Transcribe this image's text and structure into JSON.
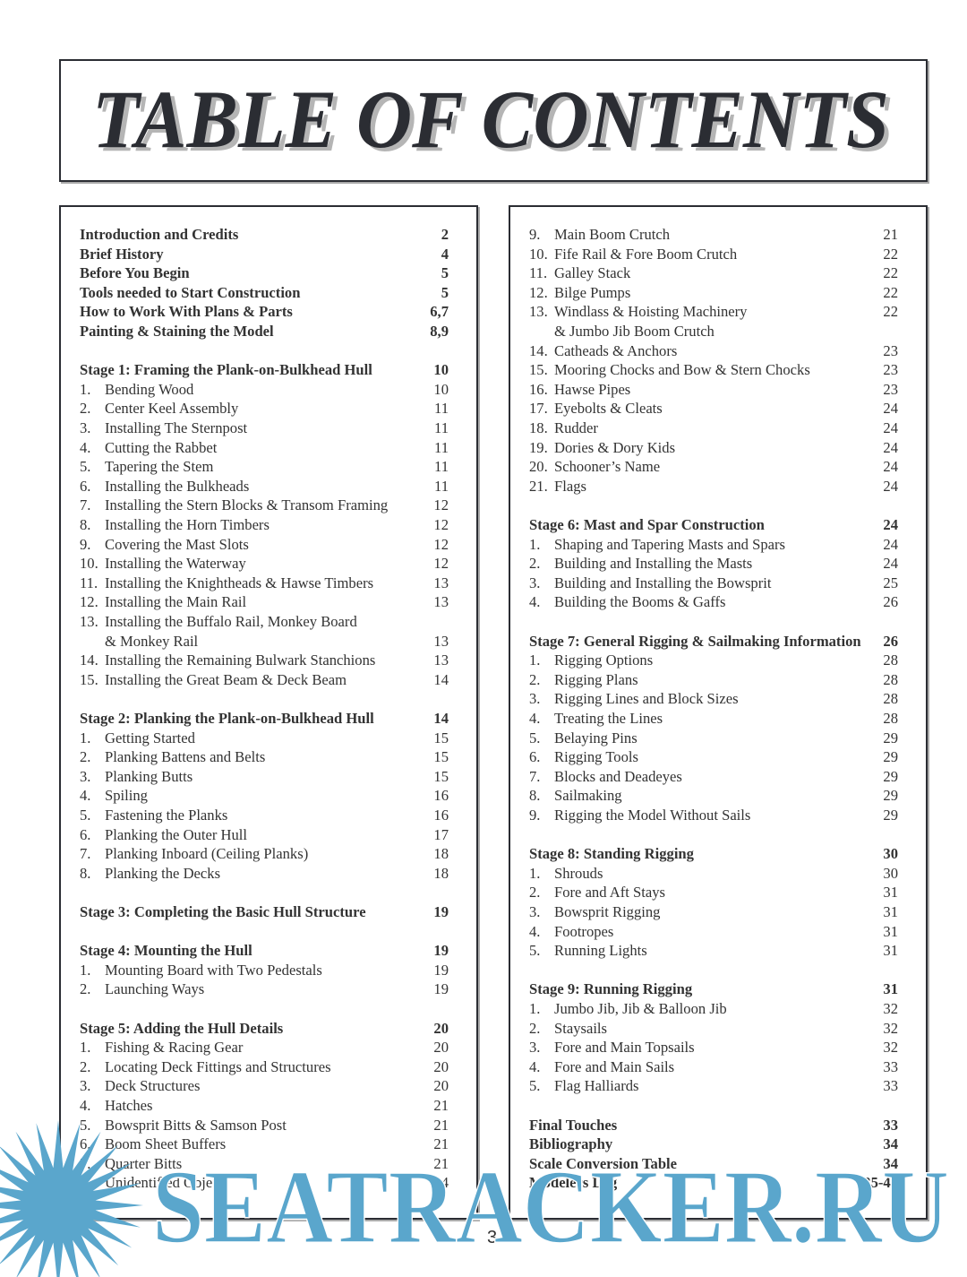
{
  "title": "TABLE OF CONTENTS",
  "page_number": "3",
  "watermark": {
    "text": "SEATRACKER.RU",
    "color": "#5aa6cc"
  },
  "left_column": [
    {
      "type": "h",
      "text": "Introduction and Credits",
      "page": "2"
    },
    {
      "type": "h",
      "text": "Brief History",
      "page": "4"
    },
    {
      "type": "h",
      "text": "Before You Begin",
      "page": "5"
    },
    {
      "type": "h",
      "text": "Tools needed  to Start Construction",
      "page": "5"
    },
    {
      "type": "h",
      "text": "How to Work With Plans & Parts",
      "page": "6,7"
    },
    {
      "type": "h",
      "text": "Painting & Staining the Model",
      "page": "8,9"
    },
    {
      "type": "blank"
    },
    {
      "type": "h",
      "text": "Stage 1: Framing the Plank-on-Bulkhead Hull",
      "page": "10"
    },
    {
      "type": "i",
      "num": "1.",
      "text": "Bending Wood",
      "page": "10"
    },
    {
      "type": "i",
      "num": "2.",
      "text": "Center Keel Assembly",
      "page": "11"
    },
    {
      "type": "i",
      "num": "3.",
      "text": "Installing The Sternpost",
      "page": "11"
    },
    {
      "type": "i",
      "num": "4.",
      "text": "Cutting the Rabbet",
      "page": "11"
    },
    {
      "type": "i",
      "num": "5.",
      "text": "Tapering the Stem",
      "page": "11"
    },
    {
      "type": "i",
      "num": "6.",
      "text": "Installing the Bulkheads",
      "page": "11"
    },
    {
      "type": "i",
      "num": "7.",
      "text": "Installing the Stern Blocks & Transom Framing",
      "page": "12"
    },
    {
      "type": "i",
      "num": "8.",
      "text": "Installing the Horn Timbers",
      "page": "12"
    },
    {
      "type": "i",
      "num": "9.",
      "text": "Covering the Mast Slots",
      "page": "12"
    },
    {
      "type": "i",
      "num": "10.",
      "text": "Installing the Waterway",
      "page": "12"
    },
    {
      "type": "i",
      "num": "11.",
      "text": "Installing the Knightheads & Hawse Timbers",
      "page": "13"
    },
    {
      "type": "i",
      "num": "12.",
      "text": "Installing the Main Rail",
      "page": "13"
    },
    {
      "type": "i",
      "num": "13.",
      "text": "Installing the Buffalo Rail, Monkey Board",
      "page": ""
    },
    {
      "type": "i",
      "num": "",
      "text": "& Monkey Rail",
      "page": "13"
    },
    {
      "type": "i",
      "num": "14.",
      "text": "Installing the Remaining Bulwark Stanchions",
      "page": "13"
    },
    {
      "type": "i",
      "num": "15.",
      "text": "Installing the Great Beam & Deck Beam",
      "page": "14"
    },
    {
      "type": "blank"
    },
    {
      "type": "h",
      "text": "Stage 2: Planking the Plank-on-Bulkhead Hull",
      "page": "14"
    },
    {
      "type": "i",
      "num": "1.",
      "text": "Getting Started",
      "page": "15"
    },
    {
      "type": "i",
      "num": "2.",
      "text": "Planking Battens and Belts",
      "page": "15"
    },
    {
      "type": "i",
      "num": "3.",
      "text": "Planking Butts",
      "page": "15"
    },
    {
      "type": "i",
      "num": "4.",
      "text": "Spiling",
      "page": "16"
    },
    {
      "type": "i",
      "num": "5.",
      "text": "Fastening the Planks",
      "page": "16"
    },
    {
      "type": "i",
      "num": "6.",
      "text": "Planking the Outer Hull",
      "page": "17"
    },
    {
      "type": "i",
      "num": "7.",
      "text": "Planking Inboard (Ceiling Planks)",
      "page": "18"
    },
    {
      "type": "i",
      "num": "8.",
      "text": "Planking the Decks",
      "page": "18"
    },
    {
      "type": "blank"
    },
    {
      "type": "h",
      "text": "Stage 3: Completing the Basic Hull Structure",
      "page": "19"
    },
    {
      "type": "blank"
    },
    {
      "type": "h",
      "text": "Stage 4: Mounting the Hull",
      "page": "19"
    },
    {
      "type": "i",
      "num": "1.",
      "text": "Mounting Board with Two Pedestals",
      "page": "19"
    },
    {
      "type": "i",
      "num": "2.",
      "text": "Launching Ways",
      "page": "19"
    },
    {
      "type": "blank"
    },
    {
      "type": "h",
      "text": "Stage 5: Adding the Hull Details",
      "page": "20"
    },
    {
      "type": "i",
      "num": "1.",
      "text": "Fishing & Racing Gear",
      "page": "20"
    },
    {
      "type": "i",
      "num": "2.",
      "text": "Locating Deck Fittings and Structures",
      "page": "20"
    },
    {
      "type": "i",
      "num": "3.",
      "text": "Deck Structures",
      "page": "20"
    },
    {
      "type": "i",
      "num": "4.",
      "text": "Hatches",
      "page": "21"
    },
    {
      "type": "i",
      "num": "5.",
      "text": "Bowsprit Bitts & Samson Post",
      "page": "21"
    },
    {
      "type": "i",
      "num": "6.",
      "text": "Boom Sheet Buffers",
      "page": "21"
    },
    {
      "type": "i",
      "num": "7.",
      "text": "Quarter Bitts",
      "page": "21"
    },
    {
      "type": "i",
      "num": "8.",
      "text": "Unidentified Object",
      "page": "24"
    }
  ],
  "right_column": [
    {
      "type": "i",
      "num": "9.",
      "text": "Main Boom Crutch",
      "page": "21"
    },
    {
      "type": "i",
      "num": "10.",
      "text": "Fife Rail & Fore Boom Crutch",
      "page": "22"
    },
    {
      "type": "i",
      "num": "11.",
      "text": "Galley Stack",
      "page": "22"
    },
    {
      "type": "i",
      "num": "12.",
      "text": "Bilge Pumps",
      "page": "22"
    },
    {
      "type": "i",
      "num": "13.",
      "text": "Windlass & Hoisting Machinery",
      "page": "22"
    },
    {
      "type": "i",
      "num": "",
      "text": "& Jumbo Jib Boom Crutch",
      "page": ""
    },
    {
      "type": "i",
      "num": "14.",
      "text": "Catheads & Anchors",
      "page": "23"
    },
    {
      "type": "i",
      "num": "15.",
      "text": "Mooring Chocks and Bow & Stern Chocks",
      "page": "23"
    },
    {
      "type": "i",
      "num": "16.",
      "text": "Hawse Pipes",
      "page": "23"
    },
    {
      "type": "i",
      "num": "17.",
      "text": "Eyebolts & Cleats",
      "page": "24"
    },
    {
      "type": "i",
      "num": "18.",
      "text": "Rudder",
      "page": "24"
    },
    {
      "type": "i",
      "num": "19.",
      "text": "Dories & Dory Kids",
      "page": "24"
    },
    {
      "type": "i",
      "num": "20.",
      "text": "Schooner’s Name",
      "page": "24"
    },
    {
      "type": "i",
      "num": "21.",
      "text": "Flags",
      "page": "24"
    },
    {
      "type": "blank"
    },
    {
      "type": "h",
      "text": "Stage 6: Mast and Spar Construction",
      "page": "24"
    },
    {
      "type": "i",
      "num": "1.",
      "text": "Shaping and Tapering Masts and Spars",
      "page": "24"
    },
    {
      "type": "i",
      "num": "2.",
      "text": "Building and Installing the Masts",
      "page": "24"
    },
    {
      "type": "i",
      "num": "3.",
      "text": "Building and Installing the Bowsprit",
      "page": "25"
    },
    {
      "type": "i",
      "num": "4.",
      "text": "Building the Booms & Gaffs",
      "page": "26"
    },
    {
      "type": "blank"
    },
    {
      "type": "h",
      "text": "Stage 7: General Rigging & Sailmaking Information",
      "page": "26"
    },
    {
      "type": "i",
      "num": "1.",
      "text": "Rigging Options",
      "page": "28"
    },
    {
      "type": "i",
      "num": "2.",
      "text": "Rigging Plans",
      "page": "28"
    },
    {
      "type": "i",
      "num": "3.",
      "text": "Rigging Lines and Block Sizes",
      "page": "28"
    },
    {
      "type": "i",
      "num": "4.",
      "text": "Treating the Lines",
      "page": "28"
    },
    {
      "type": "i",
      "num": "5.",
      "text": "Belaying Pins",
      "page": "29"
    },
    {
      "type": "i",
      "num": "6.",
      "text": "Rigging Tools",
      "page": "29"
    },
    {
      "type": "i",
      "num": "7.",
      "text": "Blocks and Deadeyes",
      "page": "29"
    },
    {
      "type": "i",
      "num": "8.",
      "text": "Sailmaking",
      "page": "29"
    },
    {
      "type": "i",
      "num": "9.",
      "text": "Rigging the Model Without Sails",
      "page": "29"
    },
    {
      "type": "blank"
    },
    {
      "type": "h",
      "text": "Stage 8: Standing Rigging",
      "page": "30"
    },
    {
      "type": "i",
      "num": "1.",
      "text": "Shrouds",
      "page": "30"
    },
    {
      "type": "i",
      "num": "2.",
      "text": "Fore and Aft Stays",
      "page": "31"
    },
    {
      "type": "i",
      "num": "3.",
      "text": "Bowsprit Rigging",
      "page": "31"
    },
    {
      "type": "i",
      "num": "4.",
      "text": "Footropes",
      "page": "31"
    },
    {
      "type": "i",
      "num": "5.",
      "text": "Running Lights",
      "page": "31"
    },
    {
      "type": "blank"
    },
    {
      "type": "h",
      "text": "Stage 9: Running Rigging",
      "page": "31"
    },
    {
      "type": "i",
      "num": "1.",
      "text": "Jumbo Jib, Jib & Balloon Jib",
      "page": "32"
    },
    {
      "type": "i",
      "num": "2.",
      "text": "Staysails",
      "page": "32"
    },
    {
      "type": "i",
      "num": "3.",
      "text": "Fore and Main Topsails",
      "page": "32"
    },
    {
      "type": "i",
      "num": "4.",
      "text": "Fore and Main Sails",
      "page": "33"
    },
    {
      "type": "i",
      "num": "5.",
      "text": "Flag Halliards",
      "page": "33"
    },
    {
      "type": "blank"
    },
    {
      "type": "h",
      "text": "Final Touches",
      "page": "33"
    },
    {
      "type": "h",
      "text": "Bibliography",
      "page": "34"
    },
    {
      "type": "h",
      "text": "Scale Conversion Table",
      "page": "34"
    },
    {
      "type": "h",
      "text": "Modelers Log",
      "page": "35-40"
    }
  ]
}
